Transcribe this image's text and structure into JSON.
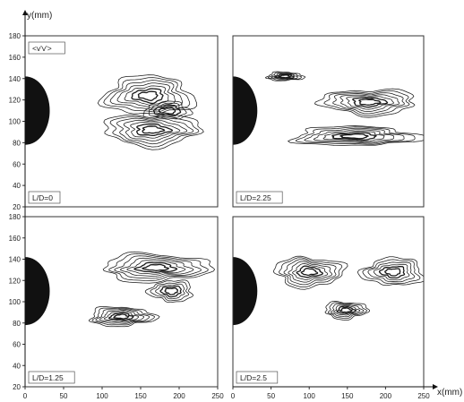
{
  "figure": {
    "y_axis_title": "y(mm)",
    "x_axis_title": "x(mm)",
    "quantity_label": "<v'v'>"
  },
  "chart_data": [
    {
      "type": "contour",
      "label": "L/D=0",
      "xlim": [
        0,
        250
      ],
      "ylim": [
        20,
        180
      ],
      "xticks": [
        0,
        50,
        100,
        150,
        200,
        250
      ],
      "yticks": [
        20,
        40,
        60,
        80,
        100,
        120,
        140,
        160,
        180
      ],
      "cylinder": {
        "center_x": 0,
        "center_y": 110,
        "radius": 32
      },
      "blobs": [
        {
          "x": 160,
          "y": 124,
          "rx": 58,
          "ry": 18,
          "lines": 7
        },
        {
          "x": 165,
          "y": 92,
          "rx": 62,
          "ry": 15,
          "lines": 7
        },
        {
          "x": 185,
          "y": 110,
          "rx": 30,
          "ry": 8,
          "lines": 4
        }
      ]
    },
    {
      "type": "contour",
      "label": "L/D=2.25",
      "xlim": [
        0,
        250
      ],
      "ylim": [
        20,
        180
      ],
      "xticks": [
        0,
        50,
        100,
        150,
        200,
        250
      ],
      "yticks": [
        20,
        40,
        60,
        80,
        100,
        120,
        140,
        160,
        180
      ],
      "cylinder": {
        "center_x": 0,
        "center_y": 110,
        "radius": 32
      },
      "blobs": [
        {
          "x": 68,
          "y": 142,
          "rx": 24,
          "ry": 4,
          "lines": 5
        },
        {
          "x": 178,
          "y": 118,
          "rx": 62,
          "ry": 12,
          "lines": 7
        },
        {
          "x": 160,
          "y": 86,
          "rx": 82,
          "ry": 9,
          "lines": 7
        }
      ]
    },
    {
      "type": "contour",
      "label": "L/D=1.25",
      "xlim": [
        0,
        250
      ],
      "ylim": [
        20,
        180
      ],
      "xticks": [
        0,
        50,
        100,
        150,
        200,
        250
      ],
      "yticks": [
        20,
        40,
        60,
        80,
        100,
        120,
        140,
        160,
        180
      ],
      "cylinder": {
        "center_x": 0,
        "center_y": 110,
        "radius": 32
      },
      "blobs": [
        {
          "x": 170,
          "y": 132,
          "rx": 70,
          "ry": 13,
          "lines": 7
        },
        {
          "x": 190,
          "y": 110,
          "rx": 28,
          "ry": 10,
          "lines": 5
        },
        {
          "x": 125,
          "y": 86,
          "rx": 42,
          "ry": 9,
          "lines": 7
        }
      ]
    },
    {
      "type": "contour",
      "label": "L/D=2.5",
      "xlim": [
        0,
        250
      ],
      "ylim": [
        20,
        180
      ],
      "xticks": [
        0,
        50,
        100,
        150,
        200,
        250
      ],
      "yticks": [
        20,
        40,
        60,
        80,
        100,
        120,
        140,
        160,
        180
      ],
      "cylinder": {
        "center_x": 0,
        "center_y": 110,
        "radius": 32
      },
      "blobs": [
        {
          "x": 100,
          "y": 128,
          "rx": 45,
          "ry": 14,
          "lines": 7
        },
        {
          "x": 210,
          "y": 128,
          "rx": 40,
          "ry": 13,
          "lines": 6
        },
        {
          "x": 148,
          "y": 92,
          "rx": 28,
          "ry": 8,
          "lines": 6
        }
      ]
    }
  ]
}
